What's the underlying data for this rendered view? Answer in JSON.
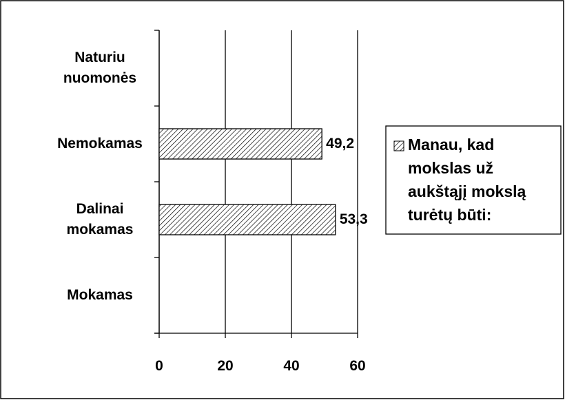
{
  "chart_data": {
    "type": "barh",
    "categories": [
      "Mokamas",
      "Dalinai mokamas",
      "Nemokamas",
      "Naturiu nuomonės"
    ],
    "series": [
      {
        "name": "Manau, kad mokslas už aukštąjį mokslą turėtų būti:",
        "color": "#000000",
        "values": [
          null,
          53.3,
          49.2,
          null
        ],
        "value_labels": [
          null,
          "53,3",
          "49,2",
          null
        ]
      }
    ],
    "xlim": [
      0,
      60
    ],
    "xticks": [
      0,
      20,
      40,
      60
    ],
    "grid": true,
    "legend": "right"
  }
}
